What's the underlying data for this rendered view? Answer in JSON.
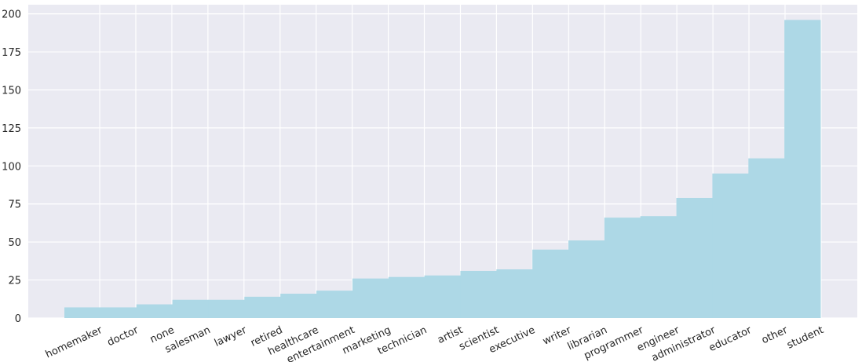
{
  "chart_data": {
    "type": "bar",
    "title": "",
    "xlabel": "",
    "ylabel": "",
    "categories": [
      "homemaker",
      "doctor",
      "none",
      "salesman",
      "lawyer",
      "retired",
      "healthcare",
      "entertainment",
      "marketing",
      "technician",
      "artist",
      "scientist",
      "executive",
      "writer",
      "librarian",
      "programmer",
      "engineer",
      "administrator",
      "educator",
      "other",
      "student"
    ],
    "values": [
      7,
      7,
      9,
      12,
      12,
      14,
      16,
      18,
      26,
      27,
      28,
      31,
      32,
      45,
      51,
      66,
      67,
      79,
      95,
      105,
      196
    ],
    "yticks": [
      0,
      25,
      50,
      75,
      100,
      125,
      150,
      175,
      200
    ],
    "ylim": [
      0,
      206
    ],
    "grid": true,
    "colors": {
      "bar": "#add8e6",
      "background": "#eaeaf2",
      "grid": "#ffffff"
    }
  }
}
